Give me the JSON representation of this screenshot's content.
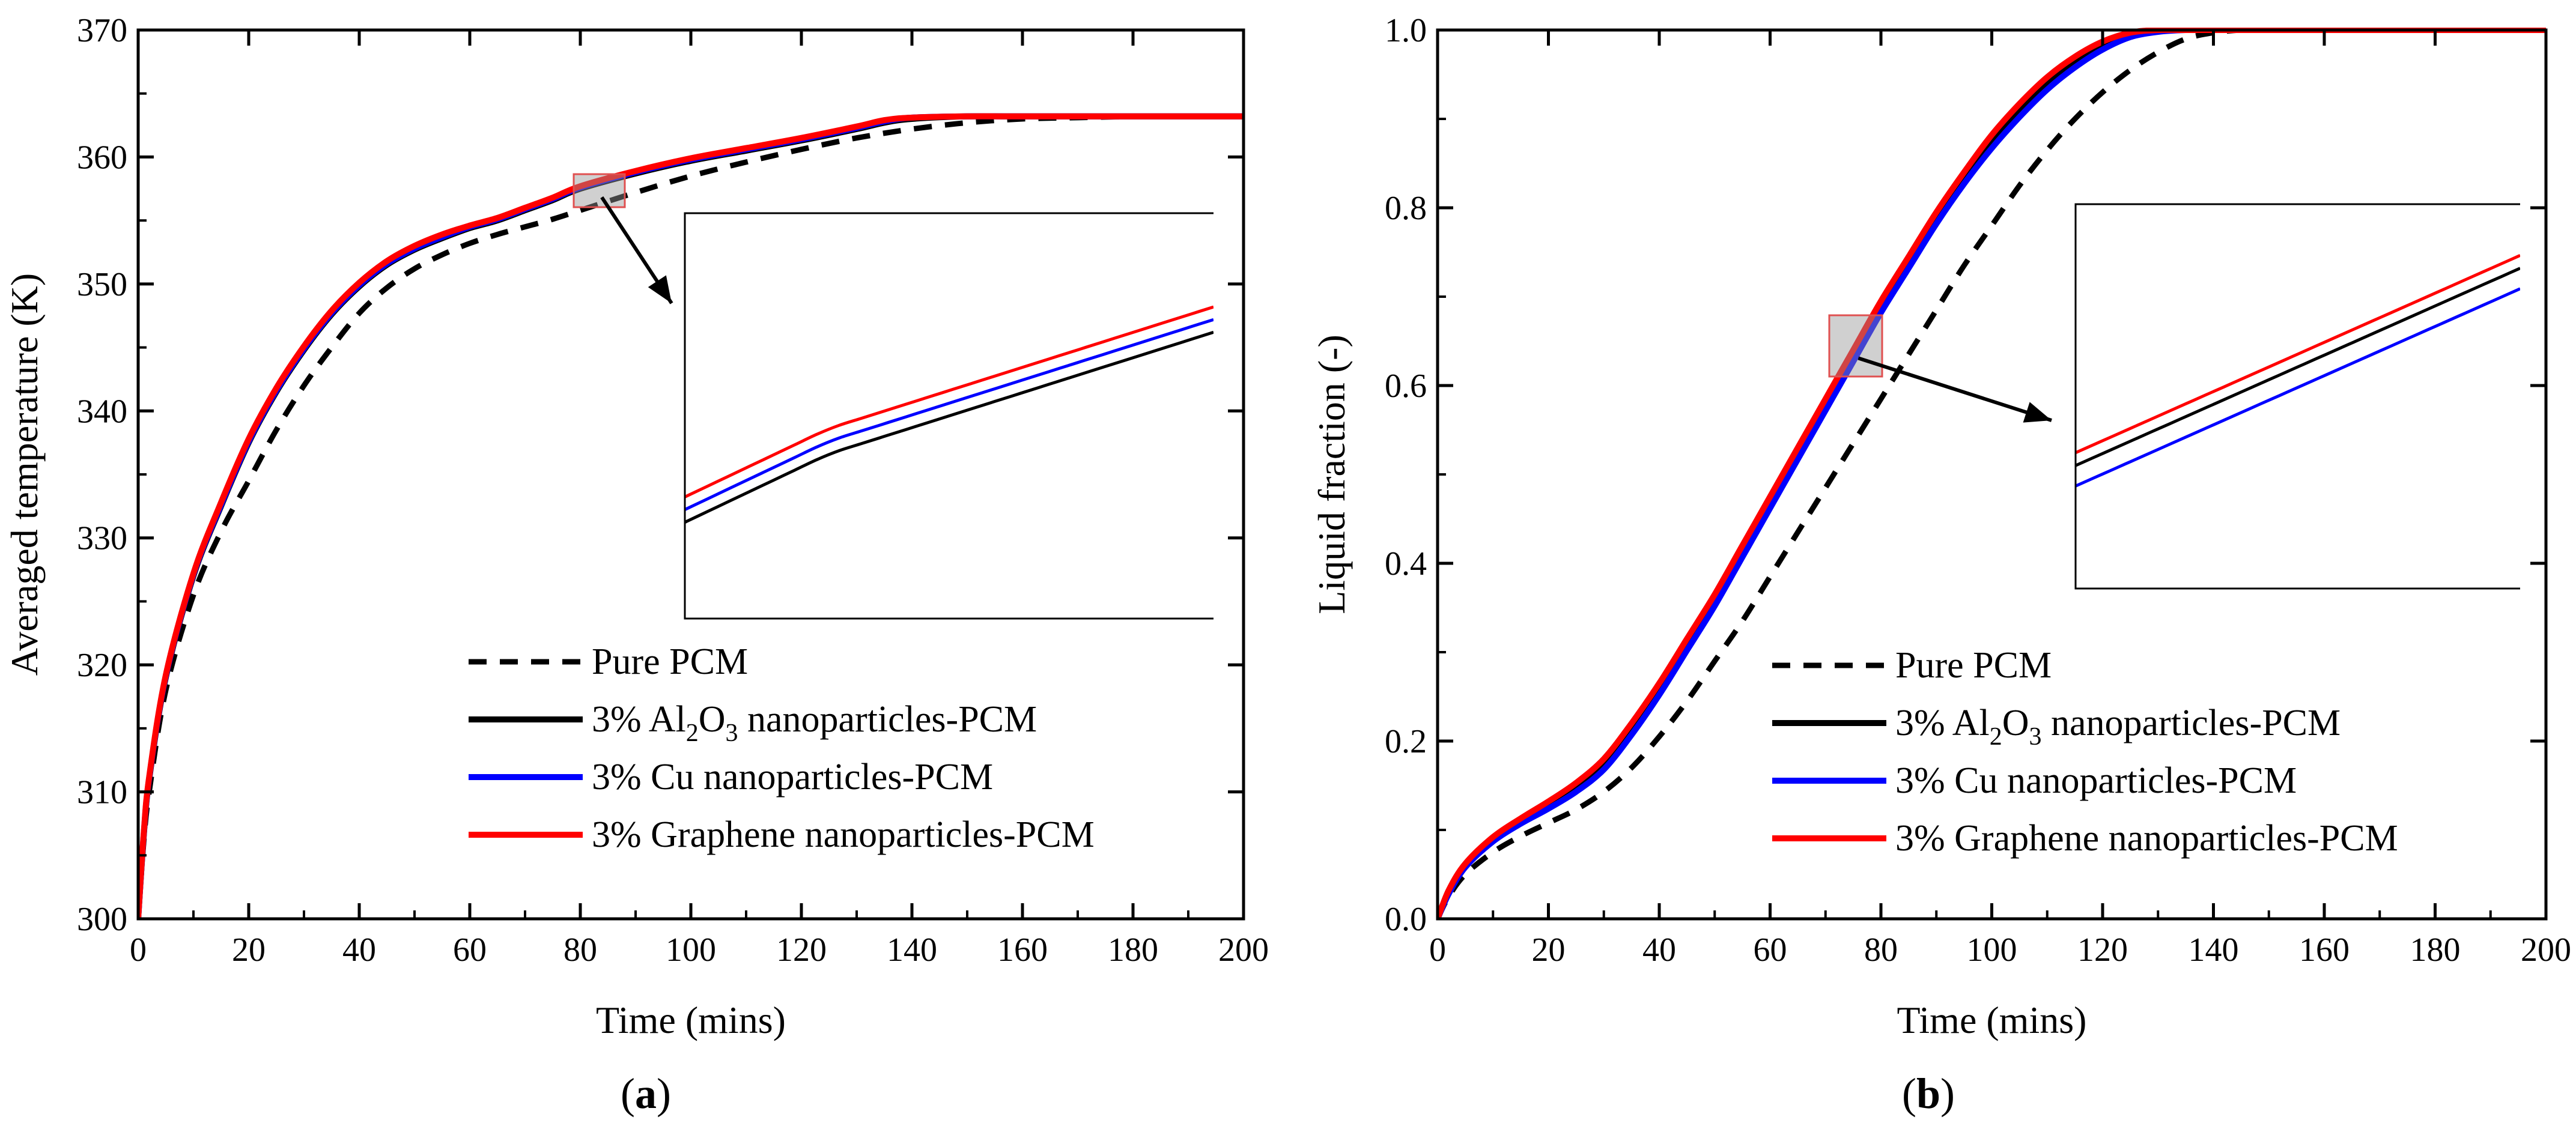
{
  "figure": {
    "panels": [
      "a",
      "b"
    ]
  },
  "chart_data": [
    {
      "type": "line",
      "panel_label": "a",
      "xlabel": "Time (mins)",
      "ylabel": "Averaged temperature (K)",
      "xlim": [
        0,
        200
      ],
      "ylim": [
        300,
        370
      ],
      "xticks": [
        0,
        20,
        40,
        60,
        80,
        100,
        120,
        140,
        160,
        180,
        200
      ],
      "yticks": [
        300,
        310,
        320,
        330,
        340,
        350,
        360,
        370
      ],
      "legend_position": "bottom-right",
      "inset_note": "zoom box near t=80 min, T=357.5 K",
      "series": [
        {
          "name": "Pure PCM",
          "legend_parts": [
            "Pure PCM"
          ],
          "color": "#000000",
          "dash": "dashed",
          "x": [
            0,
            1,
            2,
            5,
            10,
            15,
            20,
            25,
            30,
            35,
            40,
            45,
            50,
            55,
            60,
            65,
            70,
            75,
            80,
            90,
            100,
            110,
            120,
            130,
            140,
            150,
            160,
            170,
            180
          ],
          "y": [
            300,
            306,
            310,
            318,
            325.5,
            330.5,
            334.5,
            338.5,
            342,
            345,
            347.7,
            349.7,
            351.2,
            352.3,
            353.2,
            353.9,
            354.5,
            355.1,
            355.8,
            357.2,
            358.5,
            359.6,
            360.6,
            361.5,
            362.2,
            362.7,
            363,
            363.1,
            363.2
          ]
        },
        {
          "name": "3% Al2O3 nanoparticles-PCM",
          "legend_parts": [
            "3% Al",
            "2",
            "O",
            "3",
            " nanoparticles-PCM"
          ],
          "color": "#000000",
          "dash": "solid",
          "x": [
            0,
            1,
            2,
            5,
            10,
            15,
            20,
            25,
            30,
            35,
            40,
            45,
            50,
            55,
            60,
            65,
            70,
            75,
            80,
            90,
            100,
            110,
            120,
            130,
            135,
            140,
            150,
            160,
            180,
            200
          ],
          "y": [
            300,
            306.5,
            311,
            319,
            327,
            332.5,
            337.5,
            341.5,
            344.8,
            347.6,
            349.8,
            351.5,
            352.7,
            353.6,
            354.4,
            355,
            355.8,
            356.6,
            357.5,
            358.7,
            359.7,
            360.5,
            361.3,
            362.2,
            362.7,
            363,
            363.2,
            363.2,
            363.2,
            363.2
          ]
        },
        {
          "name": "3% Cu nanoparticles-PCM",
          "legend_parts": [
            "3% Cu nanoparticles-PCM"
          ],
          "color": "#0000ff",
          "dash": "solid",
          "x": [
            0,
            1,
            2,
            5,
            10,
            15,
            20,
            25,
            30,
            35,
            40,
            45,
            50,
            55,
            60,
            65,
            70,
            75,
            80,
            90,
            100,
            110,
            120,
            130,
            135,
            140,
            150,
            160,
            180,
            200
          ],
          "y": [
            300,
            306.6,
            311.1,
            319.1,
            327.1,
            332.6,
            337.6,
            341.6,
            344.9,
            347.7,
            349.9,
            351.6,
            352.8,
            353.7,
            354.5,
            355.1,
            355.9,
            356.7,
            357.6,
            358.8,
            359.8,
            360.6,
            361.4,
            362.3,
            362.8,
            363.1,
            363.2,
            363.2,
            363.2,
            363.2
          ]
        },
        {
          "name": "3% Graphene nanoparticles-PCM",
          "legend_parts": [
            "3% Graphene nanoparticles-PCM"
          ],
          "color": "#ff0000",
          "dash": "solid",
          "x": [
            0,
            1,
            2,
            5,
            10,
            15,
            20,
            25,
            30,
            35,
            40,
            45,
            50,
            55,
            60,
            65,
            70,
            75,
            80,
            90,
            100,
            110,
            120,
            130,
            135,
            140,
            150,
            160,
            180,
            200
          ],
          "y": [
            300,
            306.7,
            311.2,
            319.2,
            327.2,
            332.8,
            337.8,
            341.8,
            345.1,
            347.9,
            350.1,
            351.8,
            353,
            353.9,
            354.6,
            355.2,
            356,
            356.8,
            357.7,
            358.9,
            359.9,
            360.7,
            361.5,
            362.4,
            362.9,
            363.1,
            363.2,
            363.2,
            363.2,
            363.2
          ]
        }
      ]
    },
    {
      "type": "line",
      "panel_label": "b",
      "xlabel": "Time (mins)",
      "ylabel": "Liquid fraction (-)",
      "xlim": [
        0,
        200
      ],
      "ylim": [
        0,
        1
      ],
      "xticks": [
        0,
        20,
        40,
        60,
        80,
        100,
        120,
        140,
        160,
        180,
        200
      ],
      "yticks": [
        0,
        0.2,
        0.4,
        0.6,
        0.8,
        1
      ],
      "ytick_labels": [
        "0.0",
        "0.2",
        "0.4",
        "0.6",
        "0.8",
        "1.0"
      ],
      "legend_position": "bottom-right",
      "inset_note": "zoom box near t=77 min, liquid fraction 0.64",
      "series": [
        {
          "name": "Pure PCM",
          "legend_parts": [
            "Pure PCM"
          ],
          "color": "#000000",
          "dash": "dashed",
          "x": [
            0,
            2,
            5,
            10,
            15,
            20,
            25,
            30,
            35,
            40,
            45,
            50,
            55,
            60,
            65,
            70,
            75,
            80,
            85,
            90,
            95,
            100,
            105,
            110,
            115,
            120,
            125,
            130,
            135,
            140,
            145,
            150,
            155,
            160,
            200
          ],
          "y": [
            0,
            0.025,
            0.05,
            0.075,
            0.093,
            0.108,
            0.123,
            0.143,
            0.17,
            0.205,
            0.245,
            0.29,
            0.335,
            0.385,
            0.435,
            0.485,
            0.535,
            0.585,
            0.635,
            0.685,
            0.735,
            0.78,
            0.825,
            0.865,
            0.9,
            0.93,
            0.955,
            0.975,
            0.99,
            0.997,
            1,
            1,
            1,
            1,
            1
          ]
        },
        {
          "name": "3% Al2O3 nanoparticles-PCM",
          "legend_parts": [
            "3% Al",
            "2",
            "O",
            "3",
            " nanoparticles-PCM"
          ],
          "color": "#000000",
          "dash": "solid",
          "x": [
            0,
            2,
            5,
            10,
            15,
            20,
            25,
            30,
            35,
            40,
            45,
            50,
            55,
            60,
            65,
            70,
            75,
            80,
            85,
            90,
            95,
            100,
            105,
            110,
            115,
            120,
            125,
            130,
            135,
            140,
            200
          ],
          "y": [
            0,
            0.03,
            0.06,
            0.09,
            0.11,
            0.128,
            0.148,
            0.175,
            0.215,
            0.26,
            0.31,
            0.36,
            0.415,
            0.47,
            0.525,
            0.58,
            0.635,
            0.69,
            0.74,
            0.79,
            0.835,
            0.875,
            0.91,
            0.94,
            0.965,
            0.983,
            0.995,
            1,
            1,
            1,
            1
          ]
        },
        {
          "name": "3% Cu nanoparticles-PCM",
          "legend_parts": [
            "3% Cu nanoparticles-PCM"
          ],
          "color": "#0000ff",
          "dash": "solid",
          "x": [
            0,
            2,
            5,
            10,
            15,
            20,
            25,
            30,
            35,
            40,
            45,
            50,
            55,
            60,
            65,
            70,
            75,
            80,
            85,
            90,
            95,
            100,
            105,
            110,
            115,
            120,
            125,
            130,
            135,
            140,
            200
          ],
          "y": [
            0,
            0.028,
            0.058,
            0.087,
            0.107,
            0.124,
            0.143,
            0.168,
            0.207,
            0.252,
            0.302,
            0.352,
            0.407,
            0.462,
            0.517,
            0.572,
            0.627,
            0.682,
            0.732,
            0.782,
            0.827,
            0.867,
            0.902,
            0.933,
            0.958,
            0.978,
            0.992,
            0.998,
            1,
            1,
            1
          ]
        },
        {
          "name": "3% Graphene nanoparticles-PCM",
          "legend_parts": [
            "3% Graphene nanoparticles-PCM"
          ],
          "color": "#ff0000",
          "dash": "solid",
          "x": [
            0,
            2,
            5,
            10,
            15,
            20,
            25,
            30,
            35,
            40,
            45,
            50,
            55,
            60,
            65,
            70,
            75,
            80,
            85,
            90,
            95,
            100,
            105,
            110,
            115,
            120,
            125,
            130,
            135,
            140,
            200
          ],
          "y": [
            0,
            0.032,
            0.062,
            0.092,
            0.113,
            0.132,
            0.153,
            0.18,
            0.22,
            0.265,
            0.315,
            0.365,
            0.42,
            0.475,
            0.53,
            0.585,
            0.64,
            0.695,
            0.745,
            0.795,
            0.84,
            0.882,
            0.917,
            0.947,
            0.97,
            0.987,
            0.997,
            1,
            1,
            1,
            1
          ]
        }
      ]
    }
  ]
}
